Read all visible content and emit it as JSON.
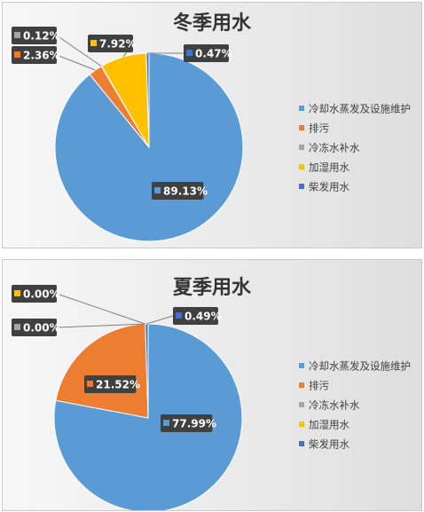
{
  "chart_data": [
    {
      "type": "pie",
      "title": "冬季用水",
      "categories": [
        "冷却水蒸发及设施维护",
        "排污",
        "冷冻水补水",
        "加湿用水",
        "柴发用水"
      ],
      "values": [
        89.13,
        2.36,
        0.12,
        7.92,
        0.47
      ],
      "value_labels": [
        "89.13%",
        "2.36%",
        "0.12%",
        "7.92%",
        "0.47%"
      ],
      "colors": [
        "#5b9bd5",
        "#ed7d31",
        "#a5a5a5",
        "#ffc000",
        "#4472c4"
      ],
      "legend_position": "right"
    },
    {
      "type": "pie",
      "title": "夏季用水",
      "categories": [
        "冷却水蒸发及设施维护",
        "排污",
        "冷冻水补水",
        "加湿用水",
        "柴发用水"
      ],
      "values": [
        77.99,
        21.52,
        0.0,
        0.0,
        0.49
      ],
      "value_labels": [
        "77.99%",
        "21.52%",
        "0.00%",
        "0.00%",
        "0.49%"
      ],
      "colors": [
        "#5b9bd5",
        "#ed7d31",
        "#a5a5a5",
        "#ffc000",
        "#4472c4"
      ],
      "legend_position": "right"
    }
  ]
}
